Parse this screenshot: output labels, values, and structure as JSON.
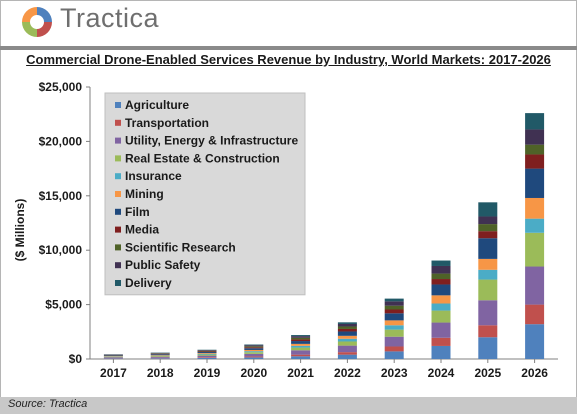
{
  "brand": {
    "name": "Tractica",
    "logo_icon": "tractica-swirl-logo"
  },
  "source": "Source: Tractica",
  "chart_data": {
    "type": "bar",
    "stacked": true,
    "title": "Commercial Drone-Enabled Services Revenue by Industry, World Markets: 2017-2026",
    "xlabel": "",
    "ylabel": "($ Millions)",
    "ylim": [
      0,
      25000
    ],
    "yticks": [
      0,
      5000,
      10000,
      15000,
      20000,
      25000
    ],
    "ytick_labels": [
      "$0",
      "$5,000",
      "$10,000",
      "$15,000",
      "$20,000",
      "$25,000"
    ],
    "grid": false,
    "legend_position": "top-left",
    "categories": [
      "2017",
      "2018",
      "2019",
      "2020",
      "2021",
      "2022",
      "2023",
      "2024",
      "2025",
      "2026"
    ],
    "series": [
      {
        "name": "Agriculture",
        "color": "#4f81bd",
        "values": [
          50,
          70,
          100,
          150,
          250,
          400,
          700,
          1200,
          2000,
          3200
        ]
      },
      {
        "name": "Transportation",
        "color": "#c0504d",
        "values": [
          30,
          40,
          60,
          90,
          150,
          230,
          450,
          750,
          1100,
          1800
        ]
      },
      {
        "name": "Utility, Energy & Infrastructure",
        "color": "#8064a2",
        "values": [
          80,
          100,
          150,
          230,
          400,
          600,
          900,
          1400,
          2300,
          3500
        ]
      },
      {
        "name": "Real Estate & Construction",
        "color": "#9bbb59",
        "values": [
          50,
          70,
          100,
          150,
          250,
          380,
          650,
          1100,
          1900,
          3100
        ]
      },
      {
        "name": "Insurance",
        "color": "#4bacc6",
        "values": [
          30,
          40,
          60,
          100,
          160,
          250,
          400,
          650,
          900,
          1300
        ]
      },
      {
        "name": "Mining",
        "color": "#f79646",
        "values": [
          30,
          50,
          70,
          110,
          180,
          270,
          450,
          750,
          1000,
          1900
        ]
      },
      {
        "name": "Film",
        "color": "#1f497d",
        "values": [
          50,
          70,
          100,
          160,
          260,
          400,
          650,
          1000,
          1900,
          2700
        ]
      },
      {
        "name": "Media",
        "color": "#7f1f1f",
        "values": [
          30,
          40,
          60,
          90,
          150,
          230,
          350,
          500,
          650,
          1300
        ]
      },
      {
        "name": "Scientific Research",
        "color": "#4f6228",
        "values": [
          30,
          40,
          60,
          90,
          150,
          230,
          350,
          500,
          650,
          900
        ]
      },
      {
        "name": "Public Safety",
        "color": "#403152",
        "values": [
          30,
          40,
          60,
          100,
          150,
          230,
          400,
          700,
          700,
          1400
        ]
      },
      {
        "name": "Delivery",
        "color": "#215967",
        "values": [
          20,
          30,
          30,
          60,
          100,
          150,
          250,
          500,
          1300,
          1500
        ]
      }
    ]
  }
}
